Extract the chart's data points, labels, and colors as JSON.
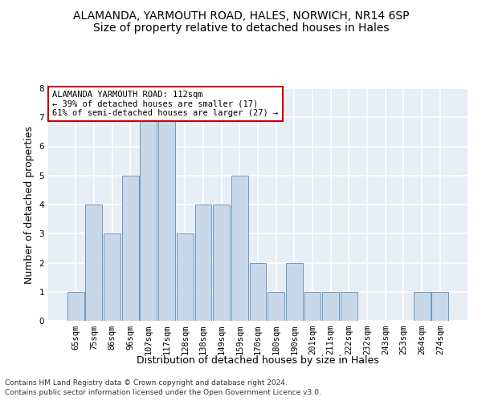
{
  "title": "ALAMANDA, YARMOUTH ROAD, HALES, NORWICH, NR14 6SP",
  "subtitle": "Size of property relative to detached houses in Hales",
  "xlabel": "Distribution of detached houses by size in Hales",
  "ylabel": "Number of detached properties",
  "categories": [
    "65sqm",
    "75sqm",
    "86sqm",
    "96sqm",
    "107sqm",
    "117sqm",
    "128sqm",
    "138sqm",
    "149sqm",
    "159sqm",
    "170sqm",
    "180sqm",
    "190sqm",
    "201sqm",
    "211sqm",
    "222sqm",
    "232sqm",
    "243sqm",
    "253sqm",
    "264sqm",
    "274sqm"
  ],
  "values": [
    1,
    4,
    3,
    5,
    7,
    7,
    3,
    4,
    4,
    5,
    2,
    1,
    2,
    1,
    1,
    1,
    0,
    0,
    0,
    1,
    1
  ],
  "highlight_index": 4,
  "bar_color": "#c8d8e8",
  "bar_edge_color": "#5b8db8",
  "annotation_title": "ALAMANDA YARMOUTH ROAD: 112sqm",
  "annotation_line1": "← 39% of detached houses are smaller (17)",
  "annotation_line2": "61% of semi-detached houses are larger (27) →",
  "annotation_box_color": "#ffffff",
  "annotation_box_edge": "#cc0000",
  "footnote1": "Contains HM Land Registry data © Crown copyright and database right 2024.",
  "footnote2": "Contains public sector information licensed under the Open Government Licence v3.0.",
  "ylim": [
    0,
    8
  ],
  "yticks": [
    0,
    1,
    2,
    3,
    4,
    5,
    6,
    7,
    8
  ],
  "plot_bg_color": "#e8eef5",
  "grid_color": "#ffffff",
  "title_fontsize": 10,
  "subtitle_fontsize": 10,
  "axis_label_fontsize": 9,
  "tick_fontsize": 7.5,
  "annotation_fontsize": 7.5,
  "footnote_fontsize": 6.5
}
